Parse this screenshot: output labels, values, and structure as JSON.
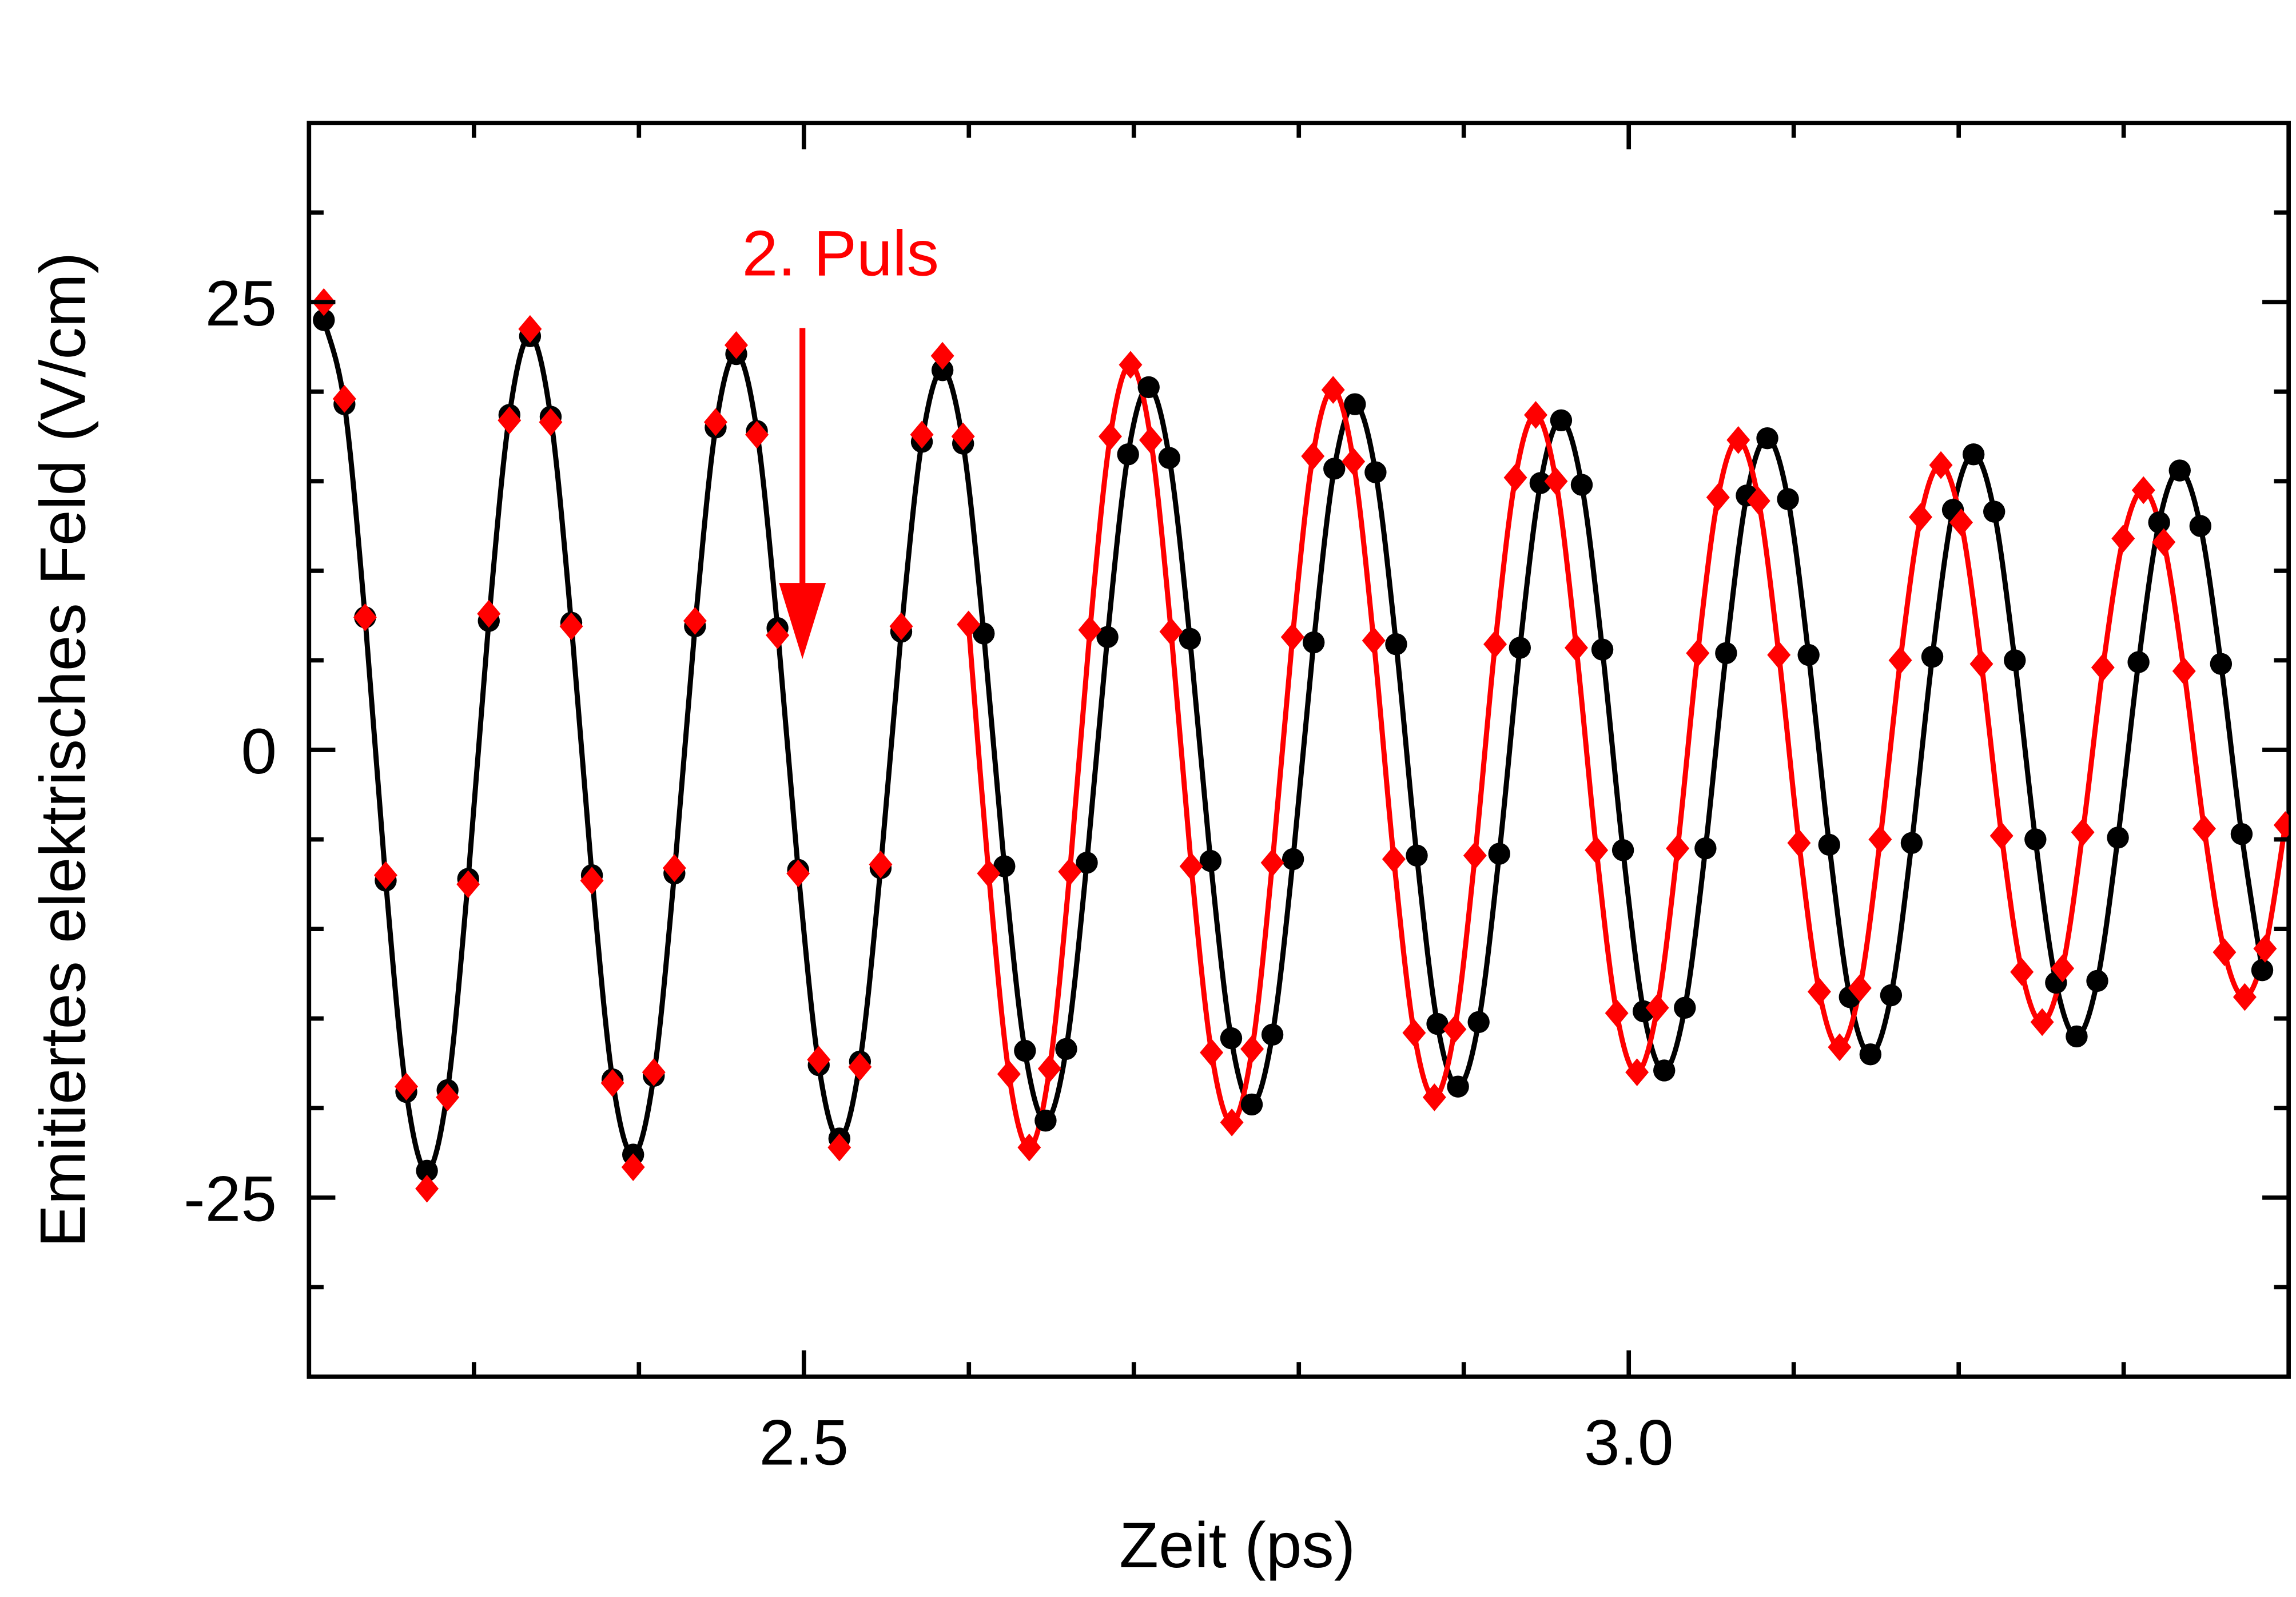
{
  "chart_data": {
    "type": "scatter",
    "xlabel": "Zeit (ps)",
    "ylabel": "Emitiertes elektrisches Feld (V/cm)",
    "annotation": "2. Puls",
    "xlim": [
      2.2,
      3.4
    ],
    "ylim": [
      -35,
      35
    ],
    "xticks": [
      2.5,
      {
        "value": 3.0,
        "label": "3.0"
      }
    ],
    "xminor": [
      2.3,
      2.4,
      2.6,
      2.7,
      2.8,
      2.9,
      3.1,
      3.2,
      3.3
    ],
    "yticks": [
      -25,
      0,
      25
    ],
    "yminor": [
      -30,
      -20,
      -15,
      -10,
      -5,
      5,
      10,
      15,
      20,
      30
    ],
    "series": [
      {
        "color": "#000000",
        "marker": "circle",
        "line": true,
        "x": [
          2.209,
          2.2215,
          2.234,
          2.2465,
          2.259,
          2.2715,
          2.284,
          2.2965,
          2.309,
          2.3215,
          2.334,
          2.3465,
          2.359,
          2.3715,
          2.384,
          2.3965,
          2.409,
          2.4215,
          2.434,
          2.4465,
          2.459,
          2.4715,
          2.484,
          2.4965,
          2.509,
          2.5215,
          2.534,
          2.5465,
          2.559,
          2.5715,
          2.584,
          2.5965,
          2.609,
          2.6215,
          2.634,
          2.6465,
          2.659,
          2.6715,
          2.684,
          2.6965,
          2.709,
          2.7215,
          2.734,
          2.7465,
          2.759,
          2.7715,
          2.784,
          2.7965,
          2.809,
          2.8215,
          2.834,
          2.8465,
          2.859,
          2.8715,
          2.884,
          2.8965,
          2.909,
          2.9215,
          2.934,
          2.9465,
          2.959,
          2.9715,
          2.984,
          2.9965,
          3.009,
          3.0215,
          3.034,
          3.0465,
          3.059,
          3.0715,
          3.084,
          3.0965,
          3.109,
          3.1215,
          3.134,
          3.1465,
          3.159,
          3.1715,
          3.184,
          3.1965,
          3.209,
          3.2215,
          3.234,
          3.2465,
          3.259,
          3.2715,
          3.284,
          3.2965,
          3.309,
          3.3215,
          3.334,
          3.3465,
          3.359,
          3.3715,
          3.384
        ],
        "values": [
          24.0,
          19.3,
          7.4,
          -7.3,
          -19.1,
          -23.5,
          -19.0,
          -7.2,
          7.2,
          18.7,
          23.1,
          18.6,
          7.1,
          -7.0,
          -18.4,
          -22.6,
          -18.2,
          -6.9,
          6.9,
          18.0,
          22.1,
          17.8,
          6.8,
          -6.7,
          -17.6,
          -21.7,
          -17.4,
          -6.6,
          6.6,
          17.2,
          21.2,
          17.1,
          6.5,
          -6.5,
          -16.8,
          -20.7,
          -16.7,
          -6.3,
          6.3,
          16.5,
          20.25,
          16.3,
          6.2,
          -6.2,
          -16.1,
          -19.8,
          -15.9,
          -6.1,
          6.0,
          15.7,
          19.3,
          15.5,
          5.9,
          -5.9,
          -15.3,
          -18.8,
          -15.2,
          -5.8,
          5.7,
          14.9,
          18.4,
          14.8,
          5.6,
          -5.6,
          -14.6,
          -17.9,
          -14.4,
          -5.5,
          5.4,
          14.2,
          17.4,
          14.0,
          5.3,
          -5.3,
          -13.8,
          -17.0,
          -13.7,
          -5.2,
          5.2,
          13.4,
          16.5,
          13.3,
          5.0,
          -5.0,
          -13.0,
          -16.0,
          -12.9,
          -4.9,
          4.9,
          12.7,
          15.6,
          12.5,
          4.8,
          -4.7,
          -12.3
        ]
      },
      {
        "color": "#ff0000",
        "marker": "diamond",
        "line": false,
        "x": [
          2.209,
          2.2215,
          2.234,
          2.2465,
          2.259,
          2.2715,
          2.284,
          2.2965,
          2.309,
          2.3215,
          2.334,
          2.3465,
          2.359,
          2.3715,
          2.384,
          2.3965,
          2.409,
          2.4215,
          2.434,
          2.4465,
          2.459,
          2.4715,
          2.484,
          2.4965,
          2.509,
          2.5215,
          2.534,
          2.5465,
          2.559,
          2.5715,
          2.584,
          2.5965
        ],
        "values": [
          25.0,
          19.6,
          7.4,
          -7.0,
          -18.8,
          -24.5,
          -19.4,
          -7.5,
          7.6,
          18.4,
          23.5,
          18.3,
          6.9,
          -7.3,
          -18.6,
          -23.3,
          -18.0,
          -6.6,
          7.2,
          18.3,
          22.6,
          17.6,
          6.4,
          -6.9,
          -17.3,
          -22.2,
          -17.7,
          -6.4,
          6.9,
          17.6,
          22.0,
          17.5
        ]
      },
      {
        "color": "#ff0000",
        "marker": "diamond",
        "line": true,
        "x": [
          2.5998,
          2.612,
          2.6243,
          2.6366,
          2.6489,
          2.6612,
          2.6734,
          2.6857,
          2.698,
          2.7103,
          2.7226,
          2.7348,
          2.7471,
          2.7594,
          2.7717,
          2.784,
          2.7962,
          2.8085,
          2.8208,
          2.8331,
          2.8454,
          2.8576,
          2.8699,
          2.8822,
          2.8945,
          2.9068,
          2.919,
          2.9313,
          2.9436,
          2.9559,
          2.9682,
          2.9804,
          2.9927,
          3.005,
          3.0173,
          3.0296,
          3.0418,
          3.0541,
          3.0664,
          3.0787,
          3.091,
          3.1032,
          3.1155,
          3.1278,
          3.1401,
          3.1524,
          3.1646,
          3.1769,
          3.1892,
          3.2015,
          3.2138,
          3.226,
          3.2383,
          3.2506,
          3.2629,
          3.2752,
          3.2874,
          3.2997,
          3.312,
          3.3243,
          3.3366,
          3.3488,
          3.3611,
          3.3734,
          3.3857,
          3.398
        ],
        "values": [
          7.0,
          -6.9,
          -18.1,
          -22.2,
          -17.8,
          -6.8,
          6.7,
          17.5,
          21.5,
          17.3,
          6.6,
          -6.5,
          -16.9,
          -20.8,
          -16.7,
          -6.3,
          6.3,
          16.4,
          20.1,
          16.1,
          6.1,
          -6.1,
          -15.8,
          -19.4,
          -15.6,
          -5.9,
          5.9,
          15.2,
          18.7,
          15.0,
          5.7,
          -5.6,
          -14.7,
          -18.0,
          -14.4,
          -5.5,
          5.4,
          14.1,
          17.3,
          13.9,
          5.3,
          -5.2,
          -13.5,
          -16.6,
          -13.3,
          -5.0,
          5.0,
          13.0,
          15.9,
          12.7,
          4.8,
          -4.8,
          -12.4,
          -15.2,
          -12.2,
          -4.6,
          4.6,
          11.8,
          14.5,
          11.6,
          4.4,
          -4.4,
          -11.3,
          -13.8,
          -11.1,
          -4.2
        ]
      }
    ]
  }
}
